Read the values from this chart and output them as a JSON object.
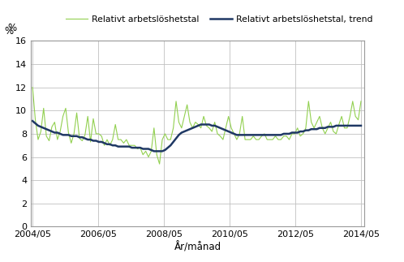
{
  "xlabel": "År/månad",
  "ylabel": "%",
  "ylim": [
    0,
    16
  ],
  "yticks": [
    0,
    2,
    4,
    6,
    8,
    10,
    12,
    14,
    16
  ],
  "xtick_labels": [
    "2004/05",
    "2006/05",
    "2008/05",
    "2010/05",
    "2012/05",
    "2014/05"
  ],
  "legend_labels": [
    "Relativt arbetslöshetstal",
    "Relativt arbetslöshetstal, trend"
  ],
  "line_color_raw": "#92d050",
  "line_color_trend": "#1f3864",
  "background_color": "#ffffff",
  "grid_color": "#c0c0c0",
  "raw_values": [
    12.0,
    9.2,
    7.5,
    8.2,
    10.2,
    7.8,
    7.4,
    8.6,
    9.0,
    7.5,
    8.2,
    9.5,
    10.2,
    8.1,
    7.2,
    8.0,
    9.8,
    7.6,
    7.4,
    7.9,
    9.5,
    7.3,
    9.3,
    8.0,
    8.0,
    7.8,
    7.0,
    7.5,
    7.0,
    7.5,
    8.8,
    7.5,
    7.5,
    7.2,
    7.5,
    7.0,
    7.0,
    7.0,
    6.7,
    6.8,
    6.2,
    6.5,
    6.0,
    6.5,
    8.5,
    6.2,
    5.4,
    7.5,
    8.0,
    7.5,
    7.5,
    8.5,
    10.8,
    9.0,
    8.5,
    9.5,
    10.5,
    9.0,
    8.5,
    9.0,
    8.8,
    8.5,
    9.5,
    8.7,
    8.5,
    8.2,
    9.0,
    8.0,
    7.8,
    7.5,
    8.5,
    9.5,
    8.5,
    8.0,
    7.5,
    8.0,
    9.5,
    7.5,
    7.5,
    7.5,
    7.8,
    7.5,
    7.5,
    7.8,
    8.0,
    7.5,
    7.5,
    7.5,
    7.8,
    7.5,
    7.5,
    7.8,
    7.8,
    7.5,
    8.0,
    8.0,
    8.5,
    7.8,
    8.0,
    8.5,
    10.8,
    9.0,
    8.5,
    9.0,
    9.5,
    8.5,
    8.0,
    8.5,
    9.0,
    8.2,
    8.0,
    8.8,
    9.5,
    8.5,
    8.5,
    9.5,
    10.8,
    9.5,
    9.2,
    10.8
  ],
  "trend_values": [
    9.1,
    8.9,
    8.7,
    8.6,
    8.5,
    8.4,
    8.3,
    8.2,
    8.1,
    8.1,
    8.0,
    7.9,
    7.9,
    7.9,
    7.8,
    7.8,
    7.8,
    7.7,
    7.7,
    7.6,
    7.5,
    7.5,
    7.4,
    7.4,
    7.3,
    7.3,
    7.2,
    7.1,
    7.1,
    7.0,
    7.0,
    6.9,
    6.9,
    6.9,
    6.9,
    6.9,
    6.8,
    6.8,
    6.8,
    6.8,
    6.7,
    6.7,
    6.7,
    6.6,
    6.5,
    6.5,
    6.5,
    6.5,
    6.6,
    6.8,
    7.0,
    7.3,
    7.6,
    7.9,
    8.1,
    8.2,
    8.3,
    8.4,
    8.5,
    8.6,
    8.7,
    8.8,
    8.8,
    8.8,
    8.8,
    8.7,
    8.7,
    8.6,
    8.5,
    8.4,
    8.3,
    8.2,
    8.1,
    8.0,
    7.9,
    7.9,
    7.9,
    7.9,
    7.9,
    7.9,
    7.9,
    7.9,
    7.9,
    7.9,
    7.9,
    7.9,
    7.9,
    7.9,
    7.9,
    7.9,
    7.9,
    8.0,
    8.0,
    8.0,
    8.1,
    8.1,
    8.1,
    8.2,
    8.2,
    8.3,
    8.3,
    8.4,
    8.4,
    8.4,
    8.5,
    8.5,
    8.5,
    8.6,
    8.6,
    8.6,
    8.7,
    8.7,
    8.7,
    8.7,
    8.7,
    8.7,
    8.7,
    8.7,
    8.7,
    8.7
  ]
}
